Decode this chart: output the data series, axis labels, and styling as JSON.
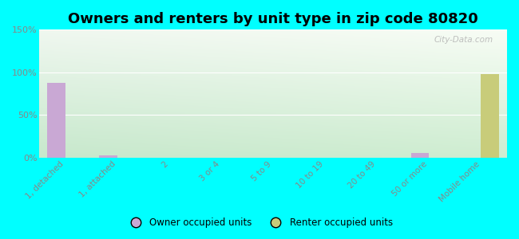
{
  "title": "Owners and renters by unit type in zip code 80820",
  "categories": [
    "1, detached",
    "1, attached",
    "2",
    "3 or 4",
    "5 to 9",
    "10 to 19",
    "20 to 49",
    "50 or more",
    "Mobile home"
  ],
  "owner_values": [
    88,
    3,
    0,
    0,
    0,
    0,
    0,
    5,
    0
  ],
  "renter_values": [
    0,
    0,
    0,
    0,
    0,
    0,
    0,
    0,
    98
  ],
  "owner_color": "#c9a8d4",
  "renter_color": "#c8cc7a",
  "background_color": "#00ffff",
  "plot_bg_color_top_left": "#f0f7f0",
  "plot_bg_color_top_right": "#e8f4ef",
  "plot_bg_color_bottom_left": "#c8e8c8",
  "plot_bg_color_bottom_right": "#c0e4d0",
  "ylim": [
    0,
    150
  ],
  "yticks": [
    0,
    50,
    100,
    150
  ],
  "ytick_labels": [
    "0%",
    "50%",
    "100%",
    "150%"
  ],
  "bar_width": 0.35,
  "title_fontsize": 13,
  "watermark": "City-Data.com",
  "grid_color": "#ffffff",
  "tick_label_color": "#888888"
}
